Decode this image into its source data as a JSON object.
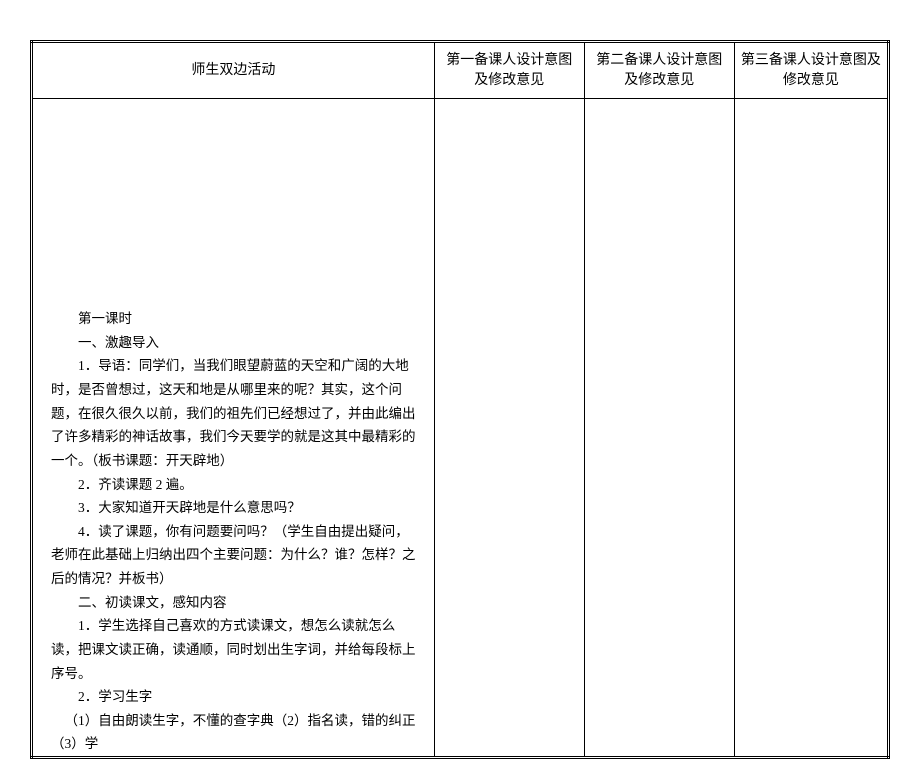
{
  "table": {
    "headers": {
      "col1": "师生双边活动",
      "col2": "第一备课人设计意图及修改意见",
      "col3": "第二备课人设计意图及修改意见",
      "col4": "第三备课人设计意图及修改意见"
    },
    "content": {
      "lesson_title": "第一课时",
      "section1_title": "一、激趣导入",
      "item1": "1．导语：同学们，当我们眼望蔚蓝的天空和广阔的大地时，是否曾想过，这天和地是从哪里来的呢？其实，这个问题，在很久很久以前，我们的祖先们已经想过了，并由此编出了许多精彩的神话故事，我们今天要学的就是这其中最精彩的一个。（板书课题：开天辟地）",
      "item2": "2．齐读课题 2 遍。",
      "item3": "3．大家知道开天辟地是什么意思吗？",
      "item4": "4．读了课题，你有问题要问吗？（学生自由提出疑问，老师在此基础上归纳出四个主要问题：为什么？谁？怎样？之后的情况？并板书）",
      "section2_title": "二、初读课文，感知内容",
      "item5": "1．学生选择自己喜欢的方式读课文，想怎么读就怎么读，把课文读正确，读通顺，同时划出生字词，并给每段标上序号。",
      "item6": "2．学习生字",
      "item7": "（1）自由朗读生字，不懂的查字典（2）指名读，错的纠正（3）学"
    },
    "style": {
      "border_color": "#000000",
      "outer_border": "3px double",
      "inner_border": "1px solid",
      "font_family": "SimSun",
      "header_fontsize": 14,
      "body_fontsize": 13.5,
      "line_height": 1.75,
      "background_color": "#ffffff"
    }
  }
}
